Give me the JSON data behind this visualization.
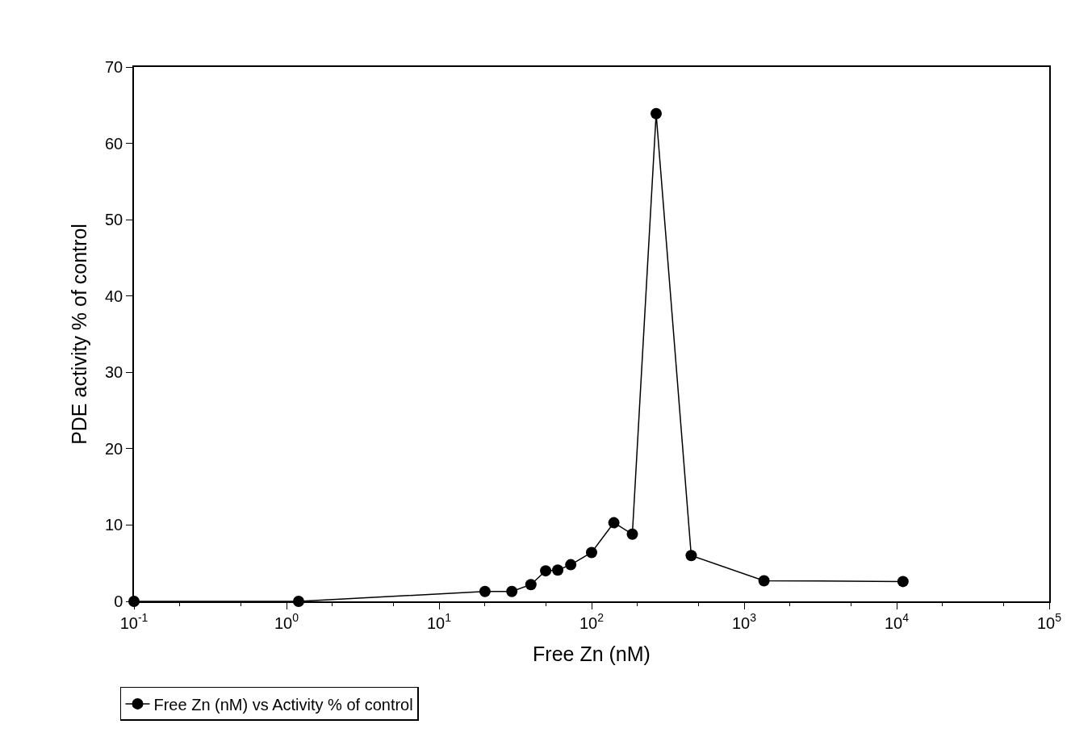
{
  "chart_data": {
    "type": "line",
    "xlabel": "Free Zn (nM)",
    "ylabel": "PDE activity % of control",
    "x": [
      0.1,
      1.2,
      20,
      30,
      40,
      50,
      60,
      73,
      100,
      140,
      185,
      265,
      450,
      1350,
      11000
    ],
    "series": [
      {
        "name": "Free Zn (nM) vs Activity % of control",
        "color": "#000000",
        "values": [
          0,
          0,
          1.3,
          1.3,
          2.2,
          4.0,
          4.1,
          4.8,
          6.4,
          10.3,
          8.8,
          63.9,
          6.0,
          2.7,
          2.6
        ]
      }
    ],
    "log": "x",
    "xlim": [
      0.1,
      100000
    ],
    "xticks": [
      {
        "value": 0.1,
        "label": "10$^{-1}$"
      },
      {
        "value": 1,
        "label": "10$^{0}$"
      },
      {
        "value": 10,
        "label": "10$^{1}$"
      },
      {
        "value": 100,
        "label": "10$^{2}$"
      },
      {
        "value": 1000,
        "label": "10$^{3}$"
      },
      {
        "value": 10000,
        "label": "10$^{4}$"
      },
      {
        "value": 100000,
        "label": "10$^{5}$"
      }
    ],
    "ylim": [
      0,
      70
    ],
    "yticks": [
      0,
      10,
      20,
      30,
      40,
      50,
      60,
      70
    ],
    "legend": "bottom left",
    "marker": "circle",
    "line_style": "solid"
  }
}
